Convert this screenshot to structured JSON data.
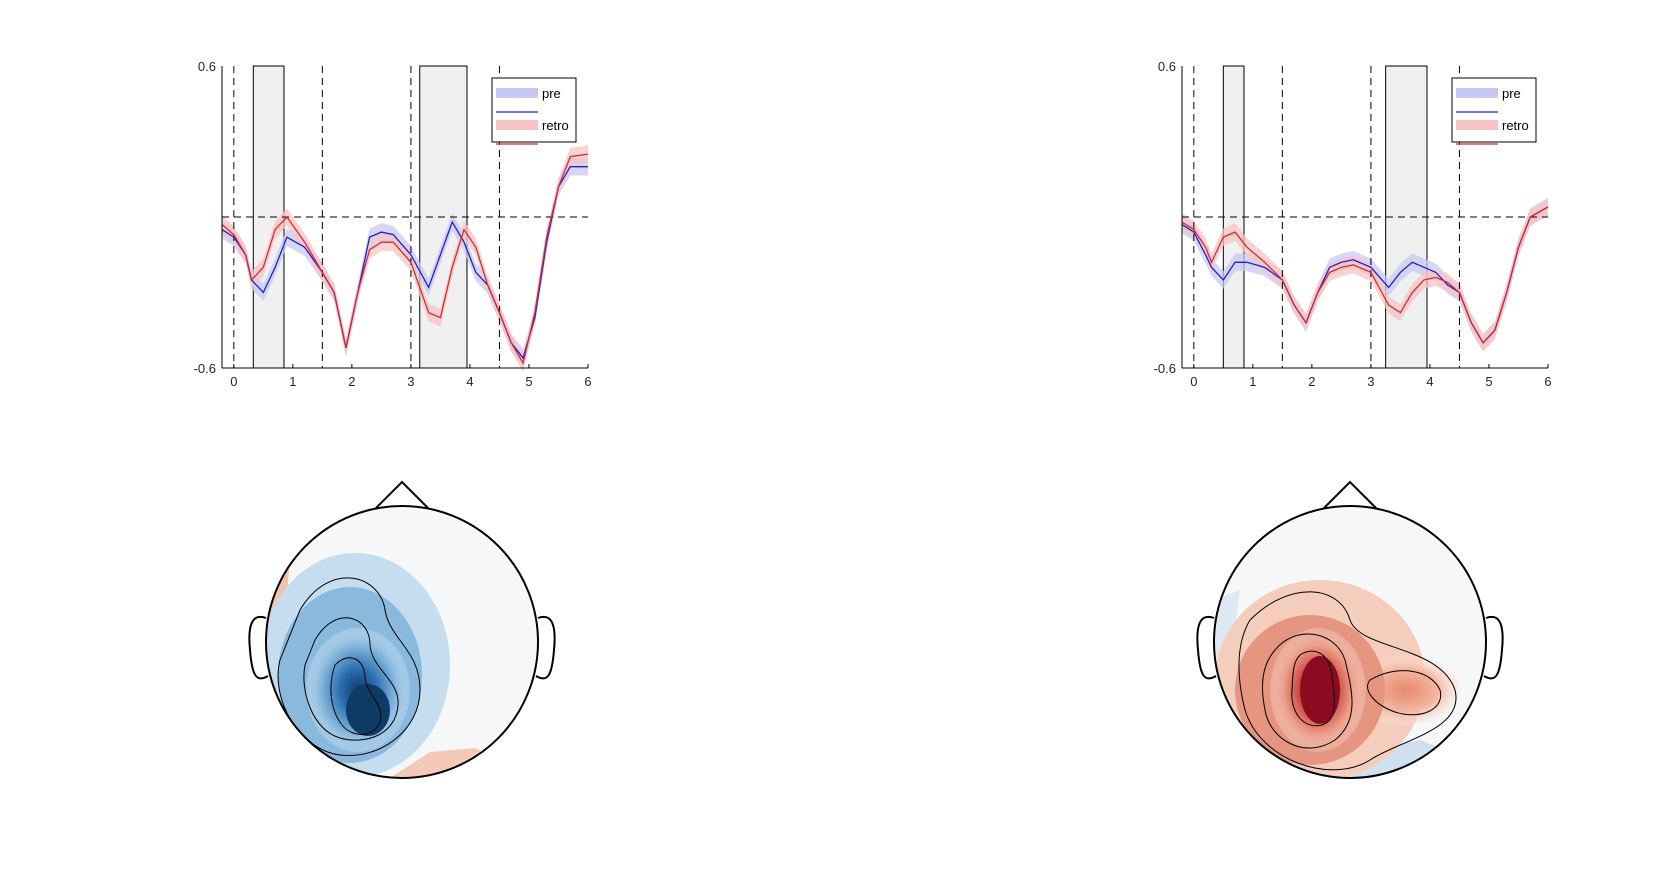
{
  "figure": {
    "colors": {
      "pre_line": "#2020d0",
      "pre_band": "#c8c8f4",
      "retro_line": "#d82a2a",
      "retro_band": "#f6c4c4",
      "shade": "#f0f0f0",
      "topo_blue": "#1f5fa0",
      "topo_red": "#b2182b"
    }
  },
  "chart_data": [
    {
      "type": "line",
      "xlim": [
        -0.2,
        6
      ],
      "ylim": [
        -0.6,
        0.6
      ],
      "xticks": [
        0,
        1,
        2,
        3,
        4,
        5,
        6
      ],
      "yticks": [
        -0.6,
        0.6
      ],
      "ytick_labels": [
        "-0.6",
        "0.6"
      ],
      "vlines": [
        0,
        1.5,
        3,
        4.5
      ],
      "hline": 0,
      "shaded_windows": [
        [
          0.33,
          0.85
        ],
        [
          3.15,
          3.95
        ]
      ],
      "legend": {
        "entries": [
          "pre",
          "retro"
        ],
        "position": "top-right"
      },
      "x": [
        -0.2,
        0,
        0.2,
        0.3,
        0.5,
        0.7,
        0.9,
        1.2,
        1.5,
        1.7,
        1.9,
        2.1,
        2.3,
        2.5,
        2.7,
        3,
        3.3,
        3.5,
        3.7,
        3.9,
        4.1,
        4.3,
        4.5,
        4.7,
        4.9,
        5.1,
        5.3,
        5.5,
        5.7,
        6
      ],
      "series": [
        {
          "name": "pre",
          "values": [
            -0.05,
            -0.08,
            -0.15,
            -0.25,
            -0.3,
            -0.2,
            -0.08,
            -0.12,
            -0.22,
            -0.3,
            -0.52,
            -0.3,
            -0.08,
            -0.06,
            -0.07,
            -0.15,
            -0.28,
            -0.15,
            -0.02,
            -0.1,
            -0.22,
            -0.27,
            -0.38,
            -0.5,
            -0.56,
            -0.4,
            -0.1,
            0.12,
            0.2,
            0.2
          ]
        },
        {
          "name": "retro",
          "values": [
            -0.03,
            -0.07,
            -0.15,
            -0.25,
            -0.2,
            -0.05,
            0,
            -0.1,
            -0.22,
            -0.3,
            -0.52,
            -0.3,
            -0.13,
            -0.1,
            -0.1,
            -0.18,
            -0.38,
            -0.4,
            -0.2,
            -0.05,
            -0.12,
            -0.27,
            -0.38,
            -0.5,
            -0.58,
            -0.38,
            -0.08,
            0.12,
            0.24,
            0.25
          ]
        }
      ]
    },
    {
      "type": "line",
      "xlim": [
        -0.2,
        6
      ],
      "ylim": [
        -0.6,
        0.6
      ],
      "xticks": [
        0,
        1,
        2,
        3,
        4,
        5,
        6
      ],
      "yticks": [
        -0.6,
        0.6
      ],
      "ytick_labels": [
        "-0.6",
        "0.6"
      ],
      "vlines": [
        0,
        1.5,
        3,
        4.5
      ],
      "hline": 0,
      "shaded_windows": [
        [
          0.5,
          0.85
        ],
        [
          3.25,
          3.95
        ]
      ],
      "legend": {
        "entries": [
          "pre",
          "retro"
        ],
        "position": "top-right"
      },
      "x": [
        -0.2,
        0,
        0.2,
        0.3,
        0.5,
        0.7,
        0.9,
        1.2,
        1.5,
        1.7,
        1.9,
        2.1,
        2.3,
        2.5,
        2.7,
        3,
        3.3,
        3.5,
        3.7,
        3.9,
        4.1,
        4.3,
        4.5,
        4.7,
        4.9,
        5.1,
        5.3,
        5.5,
        5.7,
        6
      ],
      "series": [
        {
          "name": "pre",
          "values": [
            -0.03,
            -0.06,
            -0.15,
            -0.2,
            -0.25,
            -0.18,
            -0.18,
            -0.2,
            -0.25,
            -0.35,
            -0.42,
            -0.3,
            -0.2,
            -0.18,
            -0.17,
            -0.2,
            -0.28,
            -0.22,
            -0.18,
            -0.2,
            -0.22,
            -0.27,
            -0.3,
            -0.42,
            -0.5,
            -0.45,
            -0.3,
            -0.12,
            0,
            0.04
          ]
        },
        {
          "name": "retro",
          "values": [
            -0.02,
            -0.05,
            -0.12,
            -0.18,
            -0.08,
            -0.06,
            -0.12,
            -0.18,
            -0.25,
            -0.35,
            -0.42,
            -0.3,
            -0.22,
            -0.2,
            -0.19,
            -0.22,
            -0.35,
            -0.38,
            -0.3,
            -0.25,
            -0.24,
            -0.26,
            -0.3,
            -0.42,
            -0.5,
            -0.45,
            -0.3,
            -0.12,
            0,
            0.04
          ]
        }
      ]
    }
  ]
}
